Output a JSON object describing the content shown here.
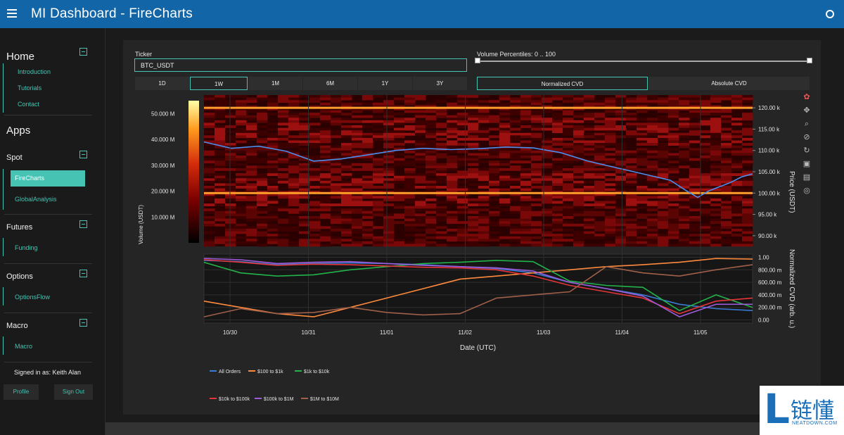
{
  "header": {
    "title": "MI Dashboard  -  FireCharts"
  },
  "sidebar": {
    "home": {
      "title": "Home",
      "links": [
        "Introduction",
        "Tutorials",
        "Contact"
      ]
    },
    "apps_title": "Apps",
    "spot": {
      "title": "Spot",
      "active": "FireCharts",
      "links": [
        "GlobalAnalysis"
      ]
    },
    "futures": {
      "title": "Futures",
      "links": [
        "Funding"
      ]
    },
    "options": {
      "title": "Options",
      "links": [
        "OptionsFlow"
      ]
    },
    "macro": {
      "title": "Macro",
      "links": [
        "Macro"
      ]
    },
    "signed_in": "Signed in as: Keith Alan",
    "profile_btn": "Profile",
    "signout_btn": "Sign Out"
  },
  "controls": {
    "ticker_label": "Ticker",
    "ticker_value": "BTC_USDT",
    "ranges": [
      "1D",
      "1W",
      "1M",
      "6M",
      "1Y",
      "3Y"
    ],
    "active_range": "1W",
    "percentile_label": "Volume Percentiles: 0 .. 100",
    "percentile_low": 0,
    "percentile_high": 100,
    "cvd_modes": [
      "Normalized CVD",
      "Absolute CVD"
    ],
    "active_cvd": "Normalized CVD"
  },
  "toolbar": [
    "color-wheel-icon",
    "pan-icon",
    "zoom-icon",
    "lasso-icon",
    "reset-icon",
    "download-icon",
    "message-icon",
    "target-icon"
  ],
  "colors": {
    "accent": "#46c3b3",
    "header": "#1265a6",
    "all_orders": "#3a7bd5",
    "100_1k": "#ff8a3d",
    "1k_10k": "#22b34b",
    "10k_100k": "#e5343a",
    "100k_1m": "#9d5ad9",
    "1m_10m": "#a0604a"
  },
  "chart_data": [
    {
      "type": "heatmap",
      "title": "",
      "xlabel": "Date (UTC)",
      "ylabel": "Price (USDT)",
      "colorbar_label": "Volume (USDT)",
      "colorbar_ticks": [
        "50.000 M",
        "40.000 M",
        "30.000 M",
        "20.000 M",
        "10.000 M"
      ],
      "colorbar_range": [
        0,
        55
      ],
      "x_ticks": [
        "10/30",
        "10/31",
        "11/01",
        "11/02",
        "11/03",
        "11/04",
        "11/05"
      ],
      "y_ticks": [
        "120.00 k",
        "115.00 k",
        "110.00 k",
        "105.00 k",
        "100.00 k",
        "95.00 k",
        "90.00 k"
      ],
      "y_range": [
        87500,
        123000
      ],
      "high_volume_levels": [
        120000,
        100000
      ],
      "price_line": [
        [
          0,
          112000
        ],
        [
          0.05,
          110500
        ],
        [
          0.1,
          111000
        ],
        [
          0.15,
          109800
        ],
        [
          0.2,
          107500
        ],
        [
          0.25,
          108000
        ],
        [
          0.3,
          109000
        ],
        [
          0.35,
          110000
        ],
        [
          0.4,
          110500
        ],
        [
          0.45,
          110200
        ],
        [
          0.5,
          110400
        ],
        [
          0.55,
          110800
        ],
        [
          0.6,
          110600
        ],
        [
          0.65,
          109500
        ],
        [
          0.7,
          107500
        ],
        [
          0.75,
          106000
        ],
        [
          0.8,
          104500
        ],
        [
          0.85,
          103000
        ],
        [
          0.88,
          100500
        ],
        [
          0.9,
          99000
        ],
        [
          0.92,
          100500
        ],
        [
          0.94,
          101500
        ],
        [
          0.96,
          102500
        ],
        [
          0.98,
          103800
        ],
        [
          1.0,
          104500
        ]
      ]
    },
    {
      "type": "line",
      "ylabel": "Normalized CVD (arb. u.)",
      "y_ticks": [
        "1.00",
        "800.00 m",
        "600.00 m",
        "400.00 m",
        "200.00 m",
        "0.00"
      ],
      "ylim": [
        -0.05,
        1.05
      ],
      "series": [
        {
          "name": "All Orders",
          "color": "#3a7bd5",
          "values": [
            0.95,
            0.93,
            0.88,
            0.9,
            0.91,
            0.9,
            0.88,
            0.85,
            0.82,
            0.75,
            0.6,
            0.5,
            0.4,
            0.25,
            0.18,
            0.15
          ]
        },
        {
          "name": "$100 to $1k",
          "color": "#ff8a3d",
          "values": [
            0.3,
            0.2,
            0.1,
            0.05,
            0.2,
            0.35,
            0.5,
            0.65,
            0.7,
            0.75,
            0.8,
            0.85,
            0.88,
            0.92,
            0.98,
            0.97
          ]
        },
        {
          "name": "$1k to $10k",
          "color": "#22b34b",
          "values": [
            0.92,
            0.75,
            0.7,
            0.72,
            0.8,
            0.85,
            0.9,
            0.92,
            0.95,
            0.93,
            0.62,
            0.55,
            0.52,
            0.15,
            0.4,
            0.2
          ]
        },
        {
          "name": "$10k to $100k",
          "color": "#e5343a",
          "values": [
            0.96,
            0.92,
            0.87,
            0.89,
            0.88,
            0.86,
            0.84,
            0.83,
            0.8,
            0.7,
            0.55,
            0.45,
            0.35,
            0.1,
            0.3,
            0.35
          ]
        },
        {
          "name": "$100k to $1M",
          "color": "#9d5ad9",
          "values": [
            0.98,
            0.96,
            0.9,
            0.92,
            0.93,
            0.9,
            0.87,
            0.85,
            0.83,
            0.78,
            0.6,
            0.5,
            0.38,
            0.05,
            0.25,
            0.25
          ]
        },
        {
          "name": "$1M to $10M",
          "color": "#a0604a",
          "values": [
            0.05,
            0.18,
            0.1,
            0.12,
            0.2,
            0.12,
            0.08,
            0.1,
            0.35,
            0.4,
            0.45,
            0.85,
            0.75,
            0.7,
            0.8,
            0.88
          ]
        }
      ]
    }
  ],
  "watermark": {
    "glyph": "L",
    "cn": "链懂",
    "sub": "NEATDOWN.COM"
  }
}
